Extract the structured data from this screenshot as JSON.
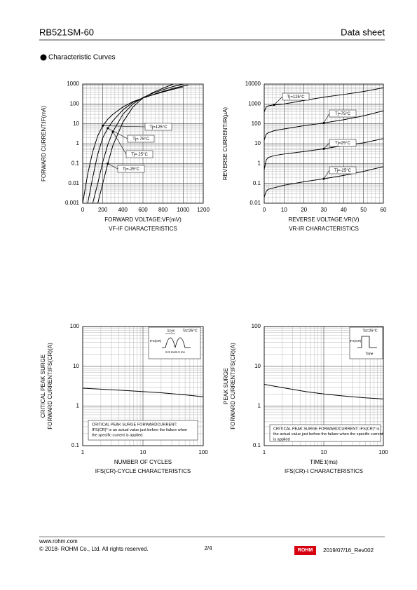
{
  "header": {
    "part_number": "RB521SM-60",
    "doc_type": "Data sheet"
  },
  "section_title": "Characteristic Curves",
  "chart_data": [
    {
      "type": "line",
      "xlabel": "FORWARD VOLTAGE:VF(mV)",
      "ylabel": [
        "FORWARD CURRENT:IF(mA)"
      ],
      "subtitle": "VF-IF CHARACTERISTICS",
      "xscale": "linear",
      "yscale": "log",
      "grid": true,
      "xlim": [
        0,
        1200
      ],
      "xticks": [
        0,
        200,
        400,
        600,
        800,
        1000,
        1200
      ],
      "ylim": [
        0.001,
        1000
      ],
      "yticks": [
        0.001,
        0.01,
        0.1,
        1,
        10,
        100,
        1000
      ],
      "x": [
        0,
        50,
        100,
        150,
        200,
        250,
        300,
        400,
        500,
        600,
        700,
        800,
        900,
        1000,
        1050
      ],
      "series": [
        {
          "name": "Tj=125°C",
          "color": "#000000",
          "values": [
            0.001,
            0.03,
            0.4,
            2.5,
            8,
            17,
            30,
            70,
            130,
            200,
            290,
            400,
            550,
            720,
            null
          ]
        },
        {
          "name": "Tj= 75°C",
          "color": "#000000",
          "values": [
            null,
            0.001,
            0.02,
            0.3,
            2,
            6,
            14,
            50,
            120,
            200,
            300,
            430,
            600,
            800,
            900
          ]
        },
        {
          "name": "Tj= 25°C",
          "color": "#000000",
          "values": [
            null,
            null,
            0.001,
            0.01,
            0.12,
            0.9,
            4,
            30,
            100,
            210,
            350,
            520,
            750,
            1000,
            null
          ]
        },
        {
          "name": "Tj=-25°C",
          "color": "#000000",
          "values": [
            null,
            null,
            null,
            0.001,
            0.01,
            0.1,
            0.8,
            12,
            70,
            200,
            380,
            620,
            1000,
            null,
            null
          ]
        }
      ]
    },
    {
      "type": "line",
      "xlabel": "REVERSE VOLTAGE:VR(V)",
      "ylabel": [
        "REVERSE CURRENT:IR(μA)"
      ],
      "subtitle": "VR-IR CHARACTERISTICS",
      "xscale": "linear",
      "yscale": "log",
      "grid": true,
      "xlim": [
        0,
        60
      ],
      "xticks": [
        0,
        10,
        20,
        30,
        40,
        50,
        60
      ],
      "ylim": [
        0.01,
        10000
      ],
      "yticks": [
        0.01,
        0.1,
        1,
        10,
        100,
        1000,
        10000
      ],
      "x": [
        0,
        1,
        2,
        5,
        10,
        20,
        30,
        40,
        50,
        60
      ],
      "series": [
        {
          "name": "Tj=125°C",
          "color": "#000000",
          "values": [
            400,
            700,
            800,
            900,
            1000,
            1500,
            2200,
            3000,
            4200,
            6500
          ]
        },
        {
          "name": "Tj=75°C",
          "color": "#000000",
          "values": [
            15,
            30,
            35,
            45,
            55,
            80,
            110,
            160,
            250,
            450
          ]
        },
        {
          "name": "Tj=25°C",
          "color": "#000000",
          "values": [
            0.5,
            1.5,
            2,
            2.5,
            3,
            4,
            5.5,
            8,
            11,
            18
          ]
        },
        {
          "name": "Tj=-25°C",
          "color": "#000000",
          "values": [
            0.02,
            0.04,
            0.05,
            0.06,
            0.08,
            0.12,
            0.17,
            0.25,
            0.4,
            0.7
          ]
        }
      ]
    },
    {
      "type": "line",
      "xlabel": "NUMBER OF CYCLES",
      "ylabel": [
        "CRITICAL PEAK SURGE",
        "FORWARD CURRENT:IFS(CR)(A)"
      ],
      "subtitle": "IFS(CR)-CYCLE CHARACTERISTICS",
      "xscale": "log",
      "yscale": "log",
      "grid": true,
      "xlim": [
        1,
        100
      ],
      "xticks": [
        1,
        10,
        100
      ],
      "ylim": [
        0.1,
        100
      ],
      "yticks": [
        0.1,
        1,
        10,
        100
      ],
      "x": [
        1,
        2,
        5,
        10,
        20,
        50,
        100
      ],
      "series": [
        {
          "color": "#000000",
          "values": [
            2.8,
            2.65,
            2.45,
            2.3,
            2.15,
            1.9,
            1.7
          ]
        }
      ],
      "note": [
        "CRITICAL PEAK SURGE FORWARDCURRENT:",
        "IFS(CR)* is an actual value just before the failure when",
        "the specific current is applied."
      ],
      "inset": {
        "cycle": "1cyc",
        "temp": "Ta=25°C",
        "current": "IFS(CR)",
        "width1": "8.3 ms",
        "width2": "8.3 ms"
      }
    },
    {
      "type": "line",
      "xlabel": "TIME:t(ms)",
      "ylabel": [
        "PEAK SURGE",
        "FORWARD CURRENT:IFS(CR)(A)"
      ],
      "subtitle": "IFS(CR)-t CHARACTERISTICS",
      "xscale": "log",
      "yscale": "log",
      "grid": true,
      "xlim": [
        1,
        100
      ],
      "xticks": [
        1,
        10,
        100
      ],
      "ylim": [
        0.1,
        100
      ],
      "yticks": [
        0.1,
        1,
        10,
        100
      ],
      "x": [
        1,
        2,
        5,
        10,
        20,
        50,
        100
      ],
      "series": [
        {
          "color": "#000000",
          "values": [
            3.5,
            2.9,
            2.3,
            2.0,
            1.8,
            1.6,
            1.5
          ]
        }
      ],
      "note": [
        "CRITICAL PEAK SURGE FORWARDCURRENT: IFS(CR)* is",
        "the actual value just before the failure when the specific current",
        "is applied"
      ],
      "inset": {
        "temp": "Ta=25°C",
        "current": "IFS(CR)",
        "time": "Time"
      }
    }
  ],
  "footer": {
    "website": "www.rohm.com",
    "copyright": "© 2018- ROHM Co., Ltd. All rights reserved.",
    "page": "2/4",
    "logo": "ROHM",
    "revision": "2019/07/16_Rev002"
  }
}
